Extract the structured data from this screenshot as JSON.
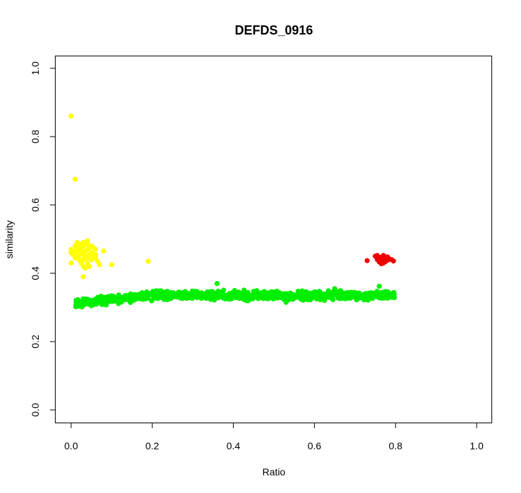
{
  "chart_data": {
    "type": "scatter",
    "title": "DEFDS_0916",
    "xlabel": "Ratio",
    "ylabel": "similarity",
    "xlim": [
      0,
      1
    ],
    "ylim": [
      0,
      1
    ],
    "xticks": [
      "0.0",
      "0.2",
      "0.4",
      "0.6",
      "0.8",
      "1.0"
    ],
    "yticks": [
      "0.0",
      "0.2",
      "0.4",
      "0.6",
      "0.8",
      "1.0"
    ],
    "grid": false,
    "legend": "none",
    "series": [
      {
        "color": "#00ee00",
        "band": {
          "x_range": [
            0.01,
            0.8
          ],
          "y_center_start": 0.312,
          "y_center_plateau": 0.335,
          "y_spread": 0.012,
          "count": 900
        },
        "points": [
          [
            0.36,
            0.37
          ],
          [
            0.53,
            0.315
          ],
          [
            0.65,
            0.355
          ],
          [
            0.76,
            0.362
          ],
          [
            0.05,
            0.305
          ]
        ]
      },
      {
        "color": "#ffff00",
        "points": [
          [
            0.0,
            0.86
          ],
          [
            0.01,
            0.675
          ],
          [
            0.19,
            0.435
          ],
          [
            0.1,
            0.425
          ],
          [
            0.0,
            0.43
          ],
          [
            0.03,
            0.39
          ],
          [
            0.07,
            0.425
          ],
          [
            0.08,
            0.465
          ],
          [
            0.06,
            0.47
          ],
          [
            0.0,
            0.46
          ],
          [
            0.0,
            0.47
          ],
          [
            0.005,
            0.455
          ],
          [
            0.01,
            0.465
          ],
          [
            0.01,
            0.48
          ],
          [
            0.015,
            0.45
          ],
          [
            0.015,
            0.47
          ],
          [
            0.02,
            0.46
          ],
          [
            0.02,
            0.475
          ],
          [
            0.02,
            0.485
          ],
          [
            0.025,
            0.455
          ],
          [
            0.025,
            0.47
          ],
          [
            0.03,
            0.44
          ],
          [
            0.03,
            0.46
          ],
          [
            0.03,
            0.48
          ],
          [
            0.03,
            0.49
          ],
          [
            0.035,
            0.45
          ],
          [
            0.035,
            0.465
          ],
          [
            0.04,
            0.43
          ],
          [
            0.04,
            0.445
          ],
          [
            0.04,
            0.47
          ],
          [
            0.04,
            0.485
          ],
          [
            0.045,
            0.455
          ],
          [
            0.045,
            0.475
          ],
          [
            0.05,
            0.44
          ],
          [
            0.05,
            0.46
          ],
          [
            0.05,
            0.48
          ],
          [
            0.055,
            0.45
          ],
          [
            0.06,
            0.455
          ],
          [
            0.065,
            0.435
          ],
          [
            0.02,
            0.44
          ],
          [
            0.025,
            0.43
          ],
          [
            0.03,
            0.42
          ],
          [
            0.035,
            0.415
          ],
          [
            0.045,
            0.42
          ],
          [
            0.015,
            0.49
          ],
          [
            0.04,
            0.495
          ],
          [
            0.035,
            0.49
          ],
          [
            0.01,
            0.445
          ],
          [
            0.055,
            0.475
          ],
          [
            0.06,
            0.445
          ]
        ]
      },
      {
        "color": "#ee0000",
        "points": [
          [
            0.73,
            0.437
          ],
          [
            0.75,
            0.45
          ],
          [
            0.755,
            0.44
          ],
          [
            0.76,
            0.447
          ],
          [
            0.76,
            0.433
          ],
          [
            0.765,
            0.44
          ],
          [
            0.77,
            0.452
          ],
          [
            0.77,
            0.43
          ],
          [
            0.775,
            0.445
          ],
          [
            0.78,
            0.438
          ],
          [
            0.78,
            0.448
          ],
          [
            0.785,
            0.442
          ],
          [
            0.79,
            0.44
          ],
          [
            0.795,
            0.436
          ],
          [
            0.765,
            0.428
          ],
          [
            0.755,
            0.452
          ],
          [
            0.775,
            0.434
          ]
        ]
      }
    ]
  }
}
